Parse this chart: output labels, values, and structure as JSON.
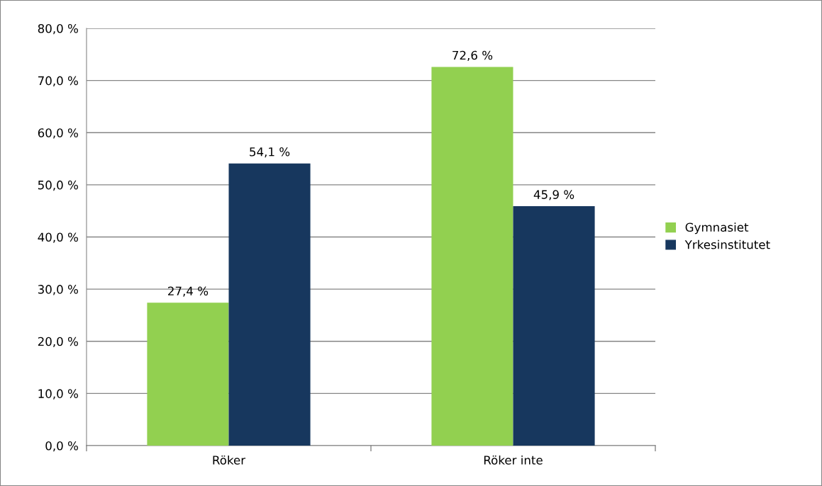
{
  "chart_data": {
    "type": "bar",
    "categories": [
      "Röker",
      "Röker inte"
    ],
    "series": [
      {
        "name": "Gymnasiet",
        "color": "#92d050",
        "values": [
          27.4,
          72.6
        ],
        "value_labels": [
          "27,4 %",
          "72,6 %"
        ]
      },
      {
        "name": "Yrkesinstitutet",
        "color": "#17375e",
        "values": [
          54.1,
          45.9
        ],
        "value_labels": [
          "54,1 %",
          "45,9 %"
        ]
      }
    ],
    "ylim": [
      0,
      80
    ],
    "yticks": [
      {
        "value": 0,
        "label": "0,0 %"
      },
      {
        "value": 10,
        "label": "10,0 %"
      },
      {
        "value": 20,
        "label": "20,0 %"
      },
      {
        "value": 30,
        "label": "30,0 %"
      },
      {
        "value": 40,
        "label": "40,0 %"
      },
      {
        "value": 50,
        "label": "50,0 %"
      },
      {
        "value": 60,
        "label": "60,0 %"
      },
      {
        "value": 70,
        "label": "70,0 %"
      },
      {
        "value": 80,
        "label": "80,0 %"
      }
    ],
    "grid": "y",
    "legend": "right"
  }
}
